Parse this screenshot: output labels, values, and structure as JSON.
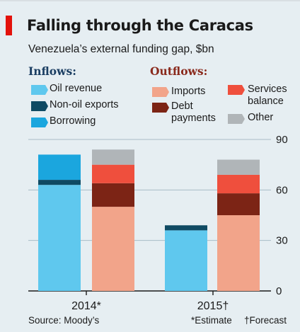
{
  "title": "Falling through the Caracas",
  "subtitle": "Venezuela’s external funding gap, $bn",
  "legend": {
    "inflows_title": "Inflows:",
    "outflows_title": "Outflows:",
    "inflows": [
      {
        "name": "Oil revenue",
        "color": "#5fc8ee"
      },
      {
        "name": "Non-oil exports",
        "color": "#0f4a63"
      },
      {
        "name": "Borrowing",
        "color": "#1ba6de"
      }
    ],
    "outflows": [
      {
        "name": "Imports",
        "color": "#f2a48a"
      },
      {
        "name": "Debt payments",
        "line1": "Debt",
        "line2": "payments",
        "color": "#7c2415"
      },
      {
        "name": "Services balance",
        "line1": "Services",
        "line2": "balance",
        "color": "#ef4f3d"
      },
      {
        "name": "Other",
        "color": "#b0b5b8"
      }
    ]
  },
  "chart_data": {
    "type": "bar",
    "stacked": true,
    "categories": [
      "2014*",
      "2015†"
    ],
    "ylim": [
      0,
      90
    ],
    "yticks": [
      0,
      30,
      60,
      90
    ],
    "grid": true,
    "y_axis_side": "right",
    "groups": [
      {
        "name": "Inflows",
        "series": [
          {
            "name": "Oil revenue",
            "color": "#5fc8ee",
            "values": [
              63,
              36
            ]
          },
          {
            "name": "Non-oil exports",
            "color": "#0f4a63",
            "values": [
              3,
              3
            ]
          },
          {
            "name": "Borrowing",
            "color": "#1ba6de",
            "values": [
              15,
              0
            ]
          }
        ]
      },
      {
        "name": "Outflows",
        "series": [
          {
            "name": "Imports",
            "color": "#f2a48a",
            "values": [
              50,
              45
            ]
          },
          {
            "name": "Debt payments",
            "color": "#7c2415",
            "values": [
              14,
              13
            ]
          },
          {
            "name": "Services balance",
            "color": "#ef4f3d",
            "values": [
              11,
              11
            ]
          },
          {
            "name": "Other",
            "color": "#b0b5b8",
            "values": [
              9,
              9
            ]
          }
        ]
      }
    ]
  },
  "footer": {
    "source": "Source: Moody’s",
    "estimate": "*Estimate",
    "forecast": "†Forecast"
  }
}
